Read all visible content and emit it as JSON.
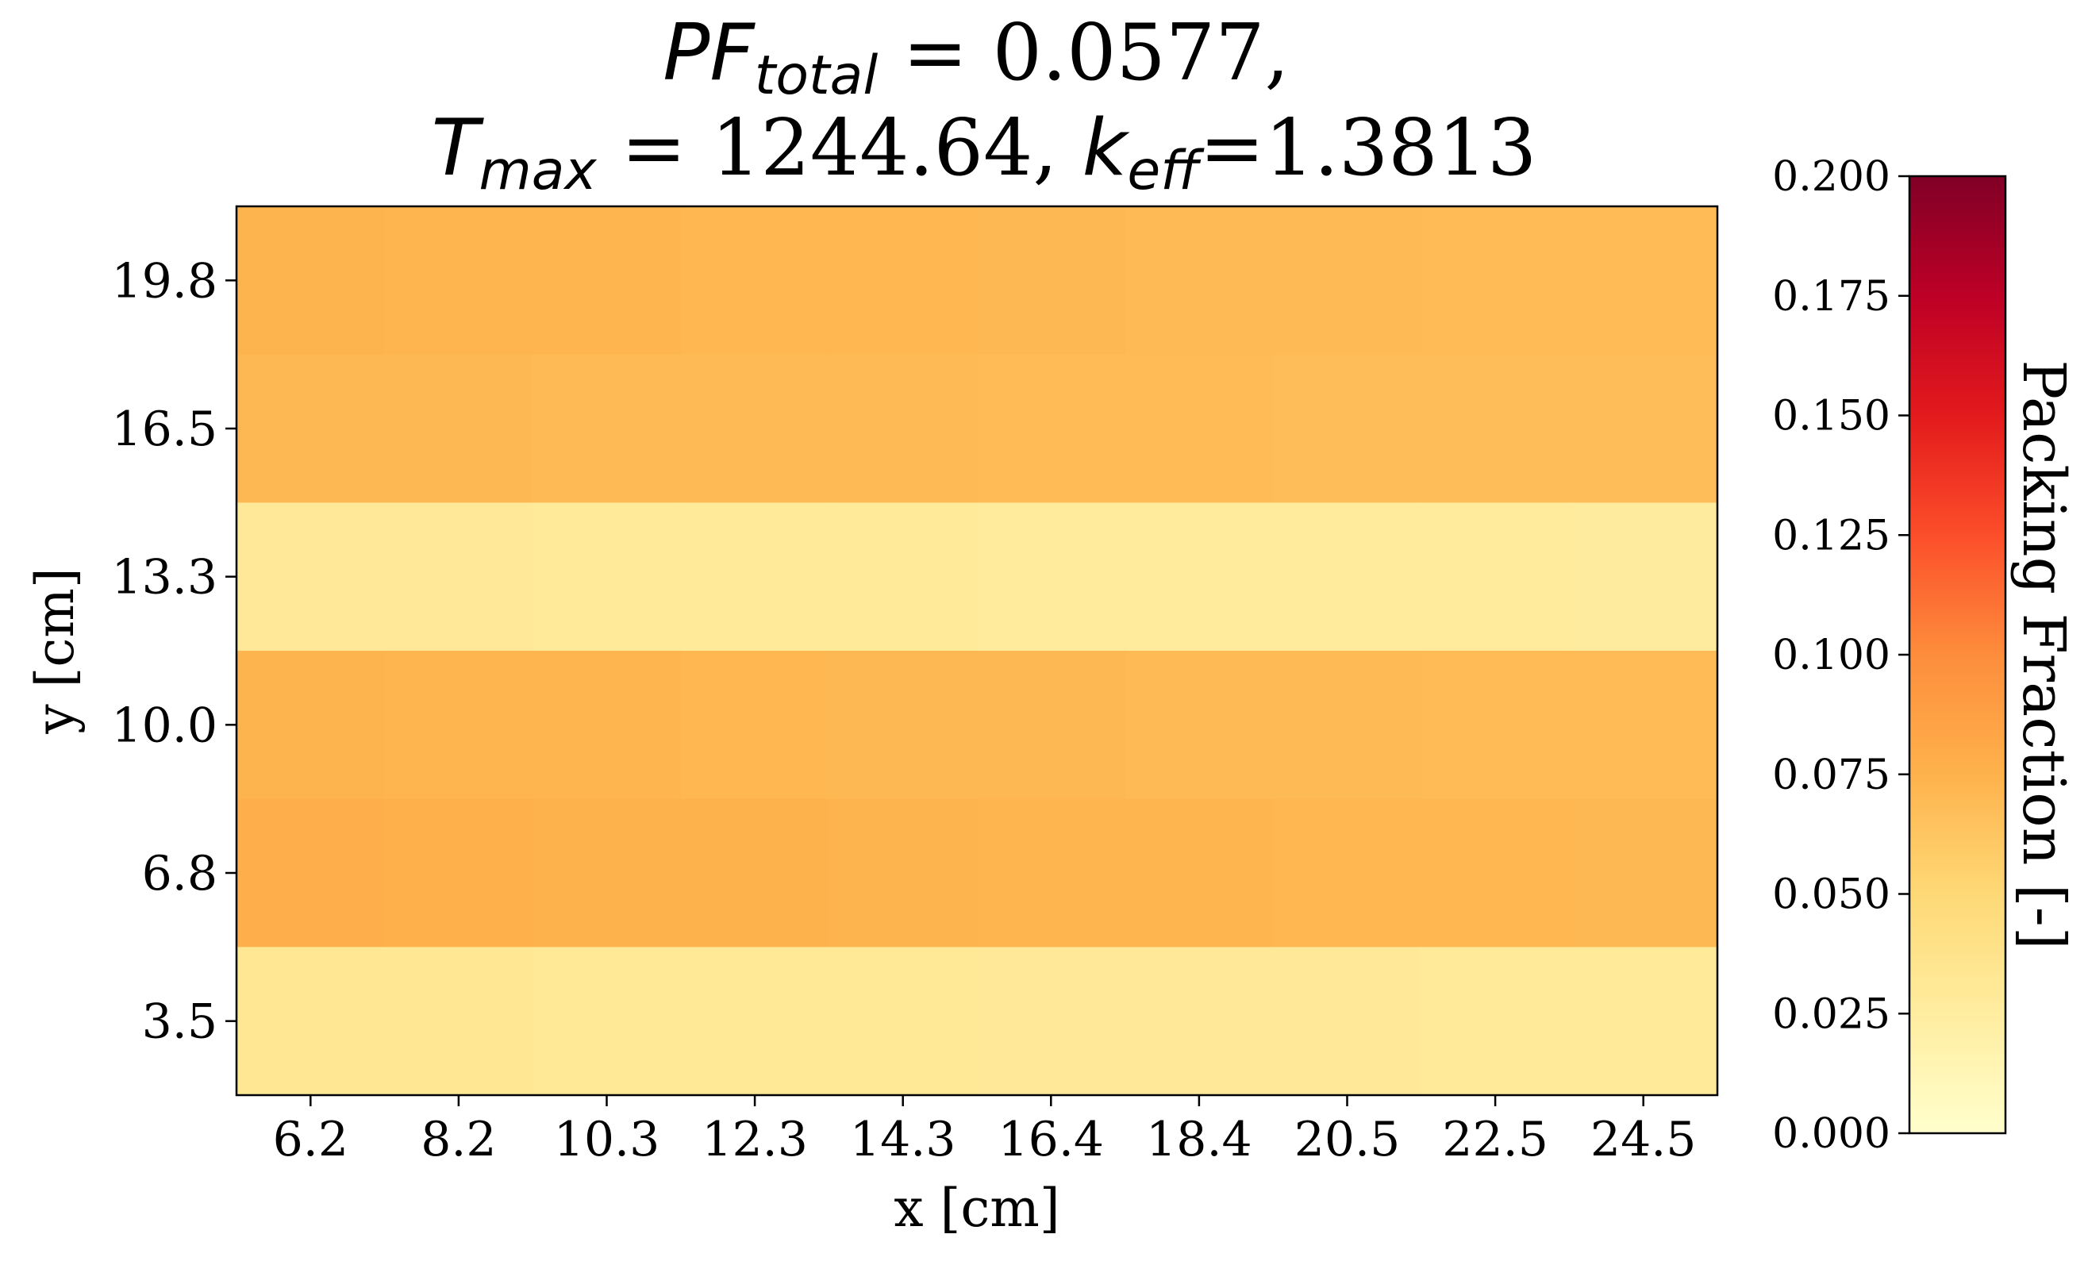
{
  "chart_data": {
    "type": "heatmap",
    "title": {
      "line1": {
        "pf_symbol": "PF",
        "pf_sub": "total",
        "pf_rest": " = 0.0577,"
      },
      "line2": {
        "t_symbol": "T",
        "t_sub": "max",
        "t_rest": " = 1244.64, ",
        "k_symbol": "k",
        "k_sub": "eff",
        "k_rest": "=1.3813"
      }
    },
    "xlabel": "x [cm]",
    "ylabel": "y [cm]",
    "x_ticks": [
      "6.2",
      "8.2",
      "10.3",
      "12.3",
      "14.3",
      "16.4",
      "18.4",
      "20.5",
      "22.5",
      "24.5"
    ],
    "y_ticks": [
      "3.5",
      "6.8",
      "10.0",
      "13.3",
      "16.5",
      "19.8"
    ],
    "colorbar": {
      "label": "Packing Fraction [-]",
      "min": 0.0,
      "max": 0.2,
      "ticks": [
        "0.000",
        "0.025",
        "0.050",
        "0.075",
        "0.100",
        "0.125",
        "0.150",
        "0.175",
        "0.200"
      ],
      "colormap": "YlOrRd",
      "stops": [
        "#ffffcc",
        "#ffeda0",
        "#fed976",
        "#feb24c",
        "#fd8d3c",
        "#fc4e2a",
        "#e31a1c",
        "#bd0026",
        "#800026"
      ]
    },
    "values": [
      [
        0.074,
        0.073,
        0.073,
        0.072,
        0.072,
        0.071,
        0.07,
        0.07,
        0.069,
        0.069
      ],
      [
        0.071,
        0.071,
        0.07,
        0.07,
        0.07,
        0.069,
        0.069,
        0.068,
        0.068,
        0.068
      ],
      [
        0.03,
        0.03,
        0.029,
        0.029,
        0.029,
        0.028,
        0.028,
        0.028,
        0.028,
        0.027
      ],
      [
        0.074,
        0.073,
        0.073,
        0.072,
        0.071,
        0.071,
        0.07,
        0.07,
        0.069,
        0.069
      ],
      [
        0.077,
        0.076,
        0.075,
        0.075,
        0.074,
        0.073,
        0.073,
        0.072,
        0.072,
        0.071
      ],
      [
        0.032,
        0.032,
        0.031,
        0.031,
        0.031,
        0.03,
        0.03,
        0.03,
        0.029,
        0.029
      ]
    ]
  }
}
